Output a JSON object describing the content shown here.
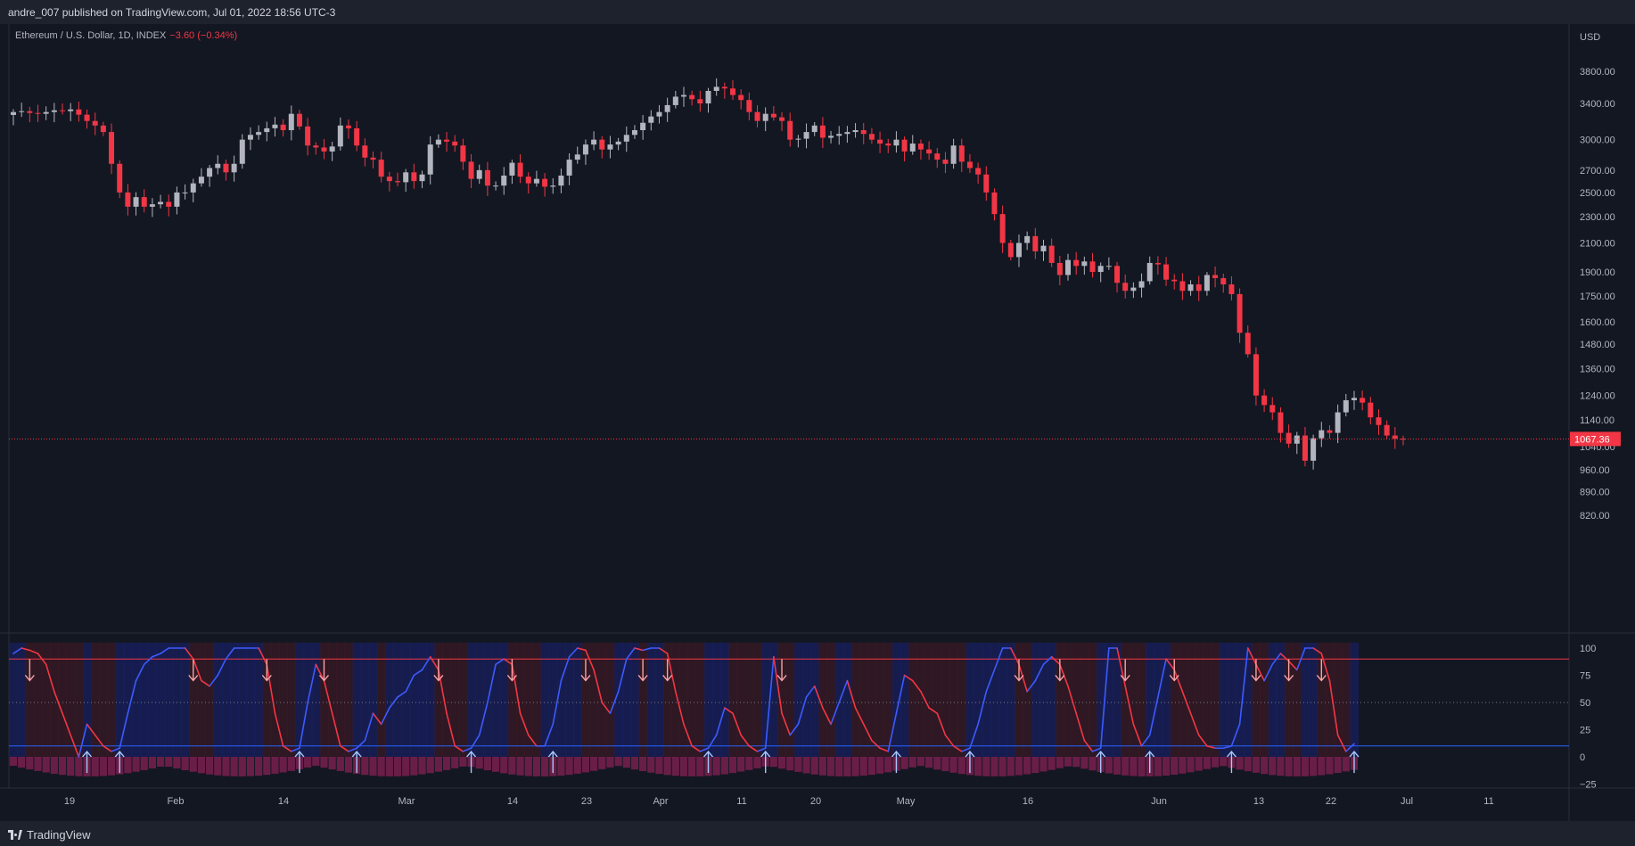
{
  "header": {
    "published_text": "andre_007 published on TradingView.com, Jul 01, 2022 18:56 UTC-3"
  },
  "legend": {
    "symbol": "Ethereum / U.S. Dollar, 1D, INDEX",
    "change": "−3.60 (−0.34%)"
  },
  "footer": {
    "brand": "TradingView"
  },
  "price_axis": {
    "currency": "USD",
    "last_price": "1067.36"
  },
  "colors": {
    "up": "#b2b5be",
    "down": "#f23645",
    "background": "#131722",
    "osc_up": "#3d5afe",
    "osc_down": "#f23645"
  },
  "chart_data": {
    "type": "candlestick",
    "price_axis_ticks": [
      "3800.00",
      "3400.00",
      "3000.00",
      "2700.00",
      "2500.00",
      "2300.00",
      "2100.00",
      "1900.00",
      "1750.00",
      "1600.00",
      "1480.00",
      "1360.00",
      "1240.00",
      "1140.00",
      "1040.00",
      "960.00",
      "890.00",
      "820.00"
    ],
    "time_axis_ticks": [
      "19",
      "Feb",
      "14",
      "Mar",
      "14",
      "23",
      "Apr",
      "11",
      "20",
      "May",
      "16",
      "Jun",
      "13",
      "22",
      "Jul",
      "11"
    ],
    "last_price": 1067.36,
    "closes": [
      3300,
      3310,
      3290,
      3280,
      3300,
      3320,
      3310,
      3330,
      3270,
      3200,
      3150,
      3080,
      2760,
      2500,
      2380,
      2460,
      2380,
      2400,
      2420,
      2380,
      2500,
      2500,
      2580,
      2640,
      2720,
      2760,
      2680,
      2760,
      3000,
      3050,
      3080,
      3120,
      3160,
      3100,
      3280,
      3140,
      2940,
      2920,
      2880,
      2930,
      3150,
      3120,
      2940,
      2820,
      2800,
      2640,
      2600,
      2590,
      2680,
      2600,
      2660,
      2950,
      3000,
      2980,
      2940,
      2780,
      2620,
      2700,
      2560,
      2560,
      2650,
      2770,
      2640,
      2580,
      2620,
      2550,
      2560,
      2650,
      2800,
      2850,
      2950,
      3000,
      2900,
      2950,
      2980,
      3050,
      3100,
      3180,
      3250,
      3300,
      3380,
      3480,
      3500,
      3450,
      3400,
      3550,
      3600,
      3580,
      3500,
      3440,
      3300,
      3200,
      3280,
      3240,
      3200,
      3000,
      3010,
      3080,
      3150,
      3020,
      3040,
      3060,
      3080,
      3100,
      3060,
      3000,
      2960,
      2940,
      3000,
      2880,
      2960,
      2900,
      2860,
      2800,
      2760,
      2940,
      2780,
      2720,
      2660,
      2500,
      2320,
      2100,
      2000,
      2100,
      2150,
      2040,
      2080,
      1960,
      1880,
      1980,
      1940,
      1970,
      1900,
      1940,
      1940,
      1830,
      1780,
      1800,
      1840,
      1960,
      1950,
      1850,
      1840,
      1780,
      1820,
      1780,
      1880,
      1860,
      1820,
      1760,
      1540,
      1430,
      1240,
      1200,
      1170,
      1090,
      1050,
      1080,
      990,
      1070,
      1100,
      1090,
      1170,
      1220,
      1230,
      1210,
      1150,
      1120,
      1080,
      1068,
      1067.36
    ],
    "oscillator": {
      "ylim": [
        -25,
        100
      ],
      "ticks": [
        "100",
        "75",
        "50",
        "25",
        "0",
        "−25"
      ],
      "levels": {
        "upper": 90,
        "middle": 50,
        "lower": 10
      },
      "k": [
        95,
        100,
        98,
        95,
        85,
        60,
        40,
        20,
        0,
        30,
        20,
        10,
        5,
        8,
        40,
        70,
        85,
        92,
        95,
        100,
        100,
        100,
        90,
        70,
        65,
        75,
        90,
        100,
        100,
        100,
        100,
        85,
        40,
        10,
        5,
        8,
        50,
        85,
        70,
        40,
        10,
        5,
        8,
        15,
        40,
        30,
        45,
        55,
        60,
        75,
        80,
        92,
        80,
        40,
        10,
        5,
        8,
        20,
        50,
        85,
        90,
        85,
        40,
        20,
        10,
        10,
        30,
        70,
        92,
        100,
        98,
        80,
        50,
        40,
        60,
        90,
        100,
        98,
        100,
        100,
        95,
        60,
        30,
        10,
        5,
        8,
        20,
        45,
        40,
        20,
        10,
        5,
        8,
        92,
        40,
        20,
        30,
        55,
        65,
        45,
        30,
        50,
        70,
        45,
        30,
        15,
        8,
        5,
        40,
        75,
        70,
        60,
        45,
        40,
        20,
        10,
        5,
        8,
        30,
        60,
        80,
        100,
        100,
        85,
        60,
        70,
        85,
        92,
        85,
        65,
        40,
        15,
        5,
        8,
        100,
        100,
        65,
        30,
        10,
        20,
        55,
        90,
        80,
        60,
        40,
        20,
        10,
        8,
        8,
        10,
        30,
        100,
        85,
        70,
        85,
        95,
        88,
        80,
        100,
        100,
        95,
        70,
        20,
        5,
        12
      ]
    }
  }
}
